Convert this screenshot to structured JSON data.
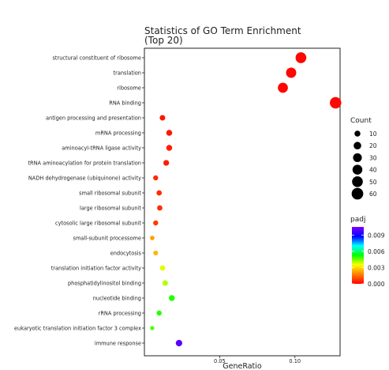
{
  "chart_data": {
    "type": "scatter",
    "title_lines": [
      "Statistics of GO Term Enrichment",
      "(Top 20)"
    ],
    "xlabel": "GeneRatio",
    "ylabel": "",
    "xlim": [
      0.0,
      0.13
    ],
    "x_ticks": [
      {
        "value": 0.05,
        "label": "0.05"
      },
      {
        "value": 0.1,
        "label": "0.10"
      }
    ],
    "grid": false,
    "terms": [
      {
        "name": "structural constituent of ribosome",
        "x": 0.104,
        "count": 50,
        "padj": 0.0001
      },
      {
        "name": "translation",
        "x": 0.0975,
        "count": 44,
        "padj": 0.0001
      },
      {
        "name": "ribosome",
        "x": 0.092,
        "count": 42,
        "padj": 0.0001
      },
      {
        "name": "RNA binding",
        "x": 0.127,
        "count": 58,
        "padj": 0.0001
      },
      {
        "name": "antigen processing and presentation",
        "x": 0.012,
        "count": 8,
        "padj": 0.0003
      },
      {
        "name": "mRNA processing",
        "x": 0.0165,
        "count": 10,
        "padj": 0.0003
      },
      {
        "name": "aminoacyl-tRNA ligase activity",
        "x": 0.0165,
        "count": 10,
        "padj": 0.0004
      },
      {
        "name": "tRNA aminoacylation for protein translation",
        "x": 0.0145,
        "count": 9,
        "padj": 0.0004
      },
      {
        "name": "NADH dehydrogenase (ubiquinone) activity",
        "x": 0.0075,
        "count": 6,
        "padj": 0.0006
      },
      {
        "name": "small ribosomal subunit",
        "x": 0.0098,
        "count": 7,
        "padj": 0.0006
      },
      {
        "name": "large ribosomal subunit",
        "x": 0.0102,
        "count": 7,
        "padj": 0.0006
      },
      {
        "name": "cytosolic large ribosomal subunit",
        "x": 0.0075,
        "count": 6,
        "padj": 0.0008
      },
      {
        "name": "small-subunit processome",
        "x": 0.0052,
        "count": 4,
        "padj": 0.0022
      },
      {
        "name": "endocytosis",
        "x": 0.0075,
        "count": 5,
        "padj": 0.0025
      },
      {
        "name": "translation initiation factor activity",
        "x": 0.012,
        "count": 7,
        "padj": 0.0037
      },
      {
        "name": "phosphatidylinositol binding",
        "x": 0.0138,
        "count": 8,
        "padj": 0.004
      },
      {
        "name": "nucleotide binding",
        "x": 0.0182,
        "count": 10,
        "padj": 0.005
      },
      {
        "name": "rRNA processing",
        "x": 0.0098,
        "count": 6,
        "padj": 0.005
      },
      {
        "name": "eukaryotic translation initiation factor 3 complex",
        "x": 0.0052,
        "count": 3,
        "padj": 0.0047
      },
      {
        "name": "immune response",
        "x": 0.023,
        "count": 13,
        "padj": 0.01
      }
    ],
    "size_legend": {
      "title": "Count",
      "values": [
        10,
        20,
        30,
        40,
        50,
        60
      ]
    },
    "color_legend": {
      "title": "padj",
      "range": [
        0.0,
        0.0105
      ],
      "ticks": [
        {
          "value": 0.009,
          "label": "0.009"
        },
        {
          "value": 0.006,
          "label": "0.006"
        },
        {
          "value": 0.003,
          "label": "0.003"
        },
        {
          "value": 0.0,
          "label": "0.000"
        }
      ],
      "gradient_low_to_high": [
        "#ff0000",
        "#ff7f00",
        "#ffff00",
        "#00ff00",
        "#00ffff",
        "#0000ff",
        "#7f00ff"
      ]
    }
  }
}
